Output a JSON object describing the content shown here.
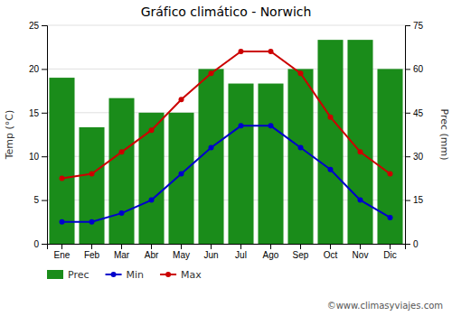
{
  "chart_data": {
    "type": "bar",
    "title": "Gráfico climático - Norwich",
    "categories": [
      "Ene",
      "Feb",
      "Mar",
      "Abr",
      "May",
      "Jun",
      "Jul",
      "Ago",
      "Sep",
      "Oct",
      "Nov",
      "Dic"
    ],
    "series": [
      {
        "name": "Prec",
        "type": "bar",
        "axis": "y2",
        "color": "#1a8c1a",
        "values": [
          57,
          40,
          50,
          45,
          45,
          60,
          55,
          55,
          60,
          70,
          70,
          60
        ]
      },
      {
        "name": "Min",
        "type": "line",
        "color": "#0000cc",
        "marker": "circle",
        "values": [
          2.5,
          2.5,
          3.5,
          5.0,
          8.0,
          11.0,
          13.5,
          13.5,
          11.0,
          8.5,
          5.0,
          3.0
        ]
      },
      {
        "name": "Max",
        "type": "line",
        "color": "#cc0000",
        "marker": "circle",
        "values": [
          7.5,
          8.0,
          10.5,
          13.0,
          16.5,
          19.5,
          22.0,
          22.0,
          19.5,
          14.5,
          10.5,
          8.0
        ]
      }
    ],
    "ylabel": "Temp (°C)",
    "y2label": "Prec (mm)",
    "ylim": [
      0,
      25
    ],
    "yticks": [
      0,
      5,
      10,
      15,
      20,
      25
    ],
    "y2lim": [
      0,
      75
    ],
    "y2ticks": [
      0,
      15,
      30,
      45,
      60,
      75
    ],
    "grid": true,
    "legend": "bottom",
    "annotations": [
      "©www.climasyviajes.com"
    ]
  }
}
